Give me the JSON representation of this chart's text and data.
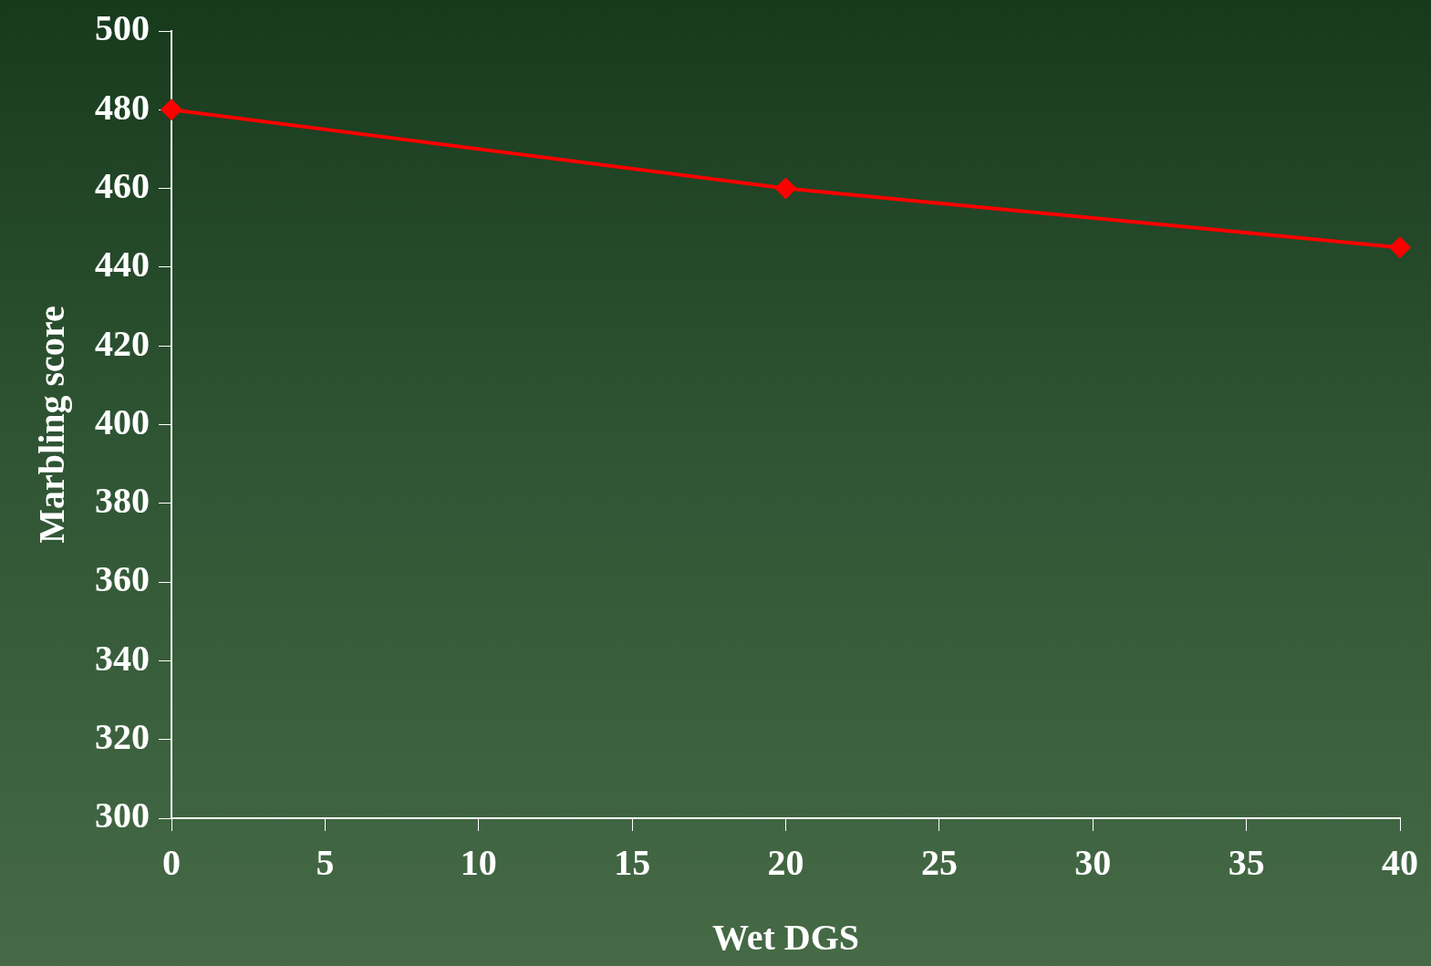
{
  "chart_data": {
    "type": "line",
    "xlabel": "Wet DGS",
    "ylabel": "Marbling score",
    "x": [
      0,
      20,
      40
    ],
    "series": [
      {
        "color": "#ff0000",
        "values": [
          480,
          460,
          445
        ]
      }
    ],
    "xlim": [
      0,
      40
    ],
    "xticks": [
      0,
      5,
      10,
      15,
      20,
      25,
      30,
      35,
      40
    ],
    "ylim": [
      300,
      500
    ],
    "yticks": [
      300,
      320,
      340,
      360,
      380,
      400,
      420,
      440,
      460,
      480,
      500
    ],
    "marker": "diamond"
  }
}
